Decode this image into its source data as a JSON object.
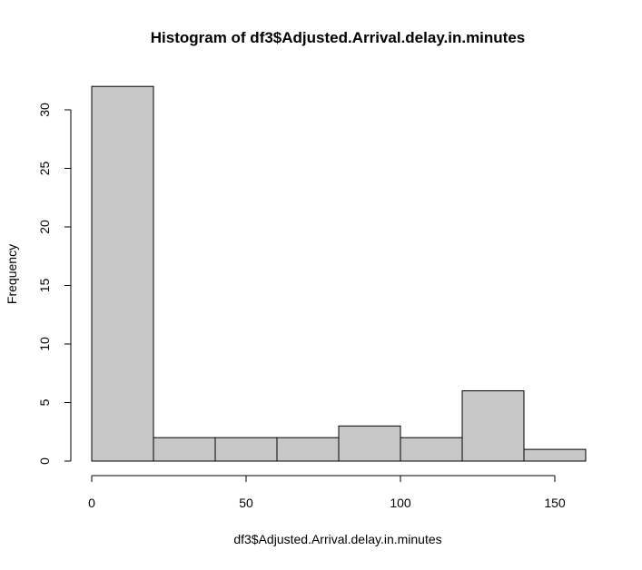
{
  "chart_data": {
    "type": "bar",
    "title": "Histogram of df3$Adjusted.Arrival.delay.in.minutes",
    "xlabel": "df3$Adjusted.Arrival.delay.in.minutes",
    "ylabel": "Frequency",
    "bins": [
      {
        "from": 0,
        "to": 20,
        "count": 32
      },
      {
        "from": 20,
        "to": 40,
        "count": 2
      },
      {
        "from": 40,
        "to": 60,
        "count": 2
      },
      {
        "from": 60,
        "to": 80,
        "count": 2
      },
      {
        "from": 80,
        "to": 100,
        "count": 3
      },
      {
        "from": 100,
        "to": 120,
        "count": 2
      },
      {
        "from": 120,
        "to": 140,
        "count": 6
      },
      {
        "from": 140,
        "to": 160,
        "count": 1
      }
    ],
    "xlim": [
      0,
      160
    ],
    "ylim": [
      0,
      32
    ],
    "xticks": [
      {
        "value": 0,
        "label": "0"
      },
      {
        "value": 50,
        "label": "50"
      },
      {
        "value": 100,
        "label": "100"
      },
      {
        "value": 150,
        "label": "150"
      }
    ],
    "yticks": [
      {
        "value": 0,
        "label": "0"
      },
      {
        "value": 5,
        "label": "5"
      },
      {
        "value": 10,
        "label": "10"
      },
      {
        "value": 15,
        "label": "15"
      },
      {
        "value": 20,
        "label": "20"
      },
      {
        "value": 25,
        "label": "25"
      },
      {
        "value": 30,
        "label": "30"
      }
    ],
    "bar_color": "#c8c8c8",
    "grid": false,
    "legend": "none"
  }
}
